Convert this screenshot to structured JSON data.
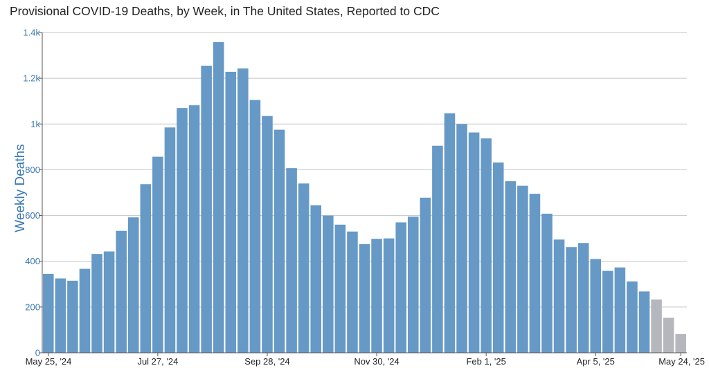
{
  "chart_data": {
    "type": "bar",
    "title": "Provisional COVID-19 Deaths, by Week, in The United States, Reported to CDC",
    "xlabel": "",
    "ylabel": "Weekly Deaths",
    "ylim": [
      0,
      1400
    ],
    "yticks": [
      {
        "value": 0,
        "label": "0"
      },
      {
        "value": 200,
        "label": "200"
      },
      {
        "value": 400,
        "label": "400"
      },
      {
        "value": 600,
        "label": "600"
      },
      {
        "value": 800,
        "label": "800"
      },
      {
        "value": 1000,
        "label": "1k"
      },
      {
        "value": 1200,
        "label": "1.2k"
      },
      {
        "value": 1400,
        "label": "1.4k"
      }
    ],
    "xticks": [
      {
        "index": 0,
        "label": "May 25, '24"
      },
      {
        "index": 9,
        "label": "Jul 27, '24"
      },
      {
        "index": 18,
        "label": "Sep 28, '24"
      },
      {
        "index": 27,
        "label": "Nov 30, '24"
      },
      {
        "index": 36,
        "label": "Feb 1, '25"
      },
      {
        "index": 45,
        "label": "Apr 5, '25"
      },
      {
        "index": 52,
        "label": "May 24, '25"
      }
    ],
    "grid": true,
    "colors": {
      "reported": "#6699c6",
      "incomplete": "#b5b7bd",
      "axis_text": "#3b78b4",
      "grid": "#c4c4c4"
    },
    "categories": [
      "May 25, '24",
      "Jun 1, '24",
      "Jun 8, '24",
      "Jun 15, '24",
      "Jun 22, '24",
      "Jun 29, '24",
      "Jul 6, '24",
      "Jul 13, '24",
      "Jul 20, '24",
      "Jul 27, '24",
      "Aug 3, '24",
      "Aug 10, '24",
      "Aug 17, '24",
      "Aug 24, '24",
      "Aug 31, '24",
      "Sep 7, '24",
      "Sep 14, '24",
      "Sep 21, '24",
      "Sep 28, '24",
      "Oct 5, '24",
      "Oct 12, '24",
      "Oct 19, '24",
      "Oct 26, '24",
      "Nov 2, '24",
      "Nov 9, '24",
      "Nov 16, '24",
      "Nov 23, '24",
      "Nov 30, '24",
      "Dec 7, '24",
      "Dec 14, '24",
      "Dec 21, '24",
      "Dec 28, '24",
      "Jan 4, '25",
      "Jan 11, '25",
      "Jan 18, '25",
      "Jan 25, '25",
      "Feb 1, '25",
      "Feb 8, '25",
      "Feb 15, '25",
      "Feb 22, '25",
      "Mar 1, '25",
      "Mar 8, '25",
      "Mar 15, '25",
      "Mar 22, '25",
      "Mar 29, '25",
      "Apr 5, '25",
      "Apr 12, '25",
      "Apr 19, '25",
      "Apr 26, '25",
      "May 3, '25",
      "May 10, '25",
      "May 17, '25",
      "May 24, '25"
    ],
    "values": [
      345,
      325,
      315,
      367,
      432,
      443,
      533,
      592,
      737,
      857,
      985,
      1070,
      1082,
      1255,
      1358,
      1228,
      1243,
      1105,
      1035,
      975,
      807,
      740,
      645,
      600,
      560,
      530,
      475,
      498,
      500,
      570,
      595,
      678,
      905,
      1047,
      1000,
      963,
      937,
      832,
      750,
      730,
      695,
      608,
      495,
      462,
      480,
      410,
      358,
      373,
      312,
      268,
      233,
      153,
      82
    ],
    "incomplete_from_index": 50
  }
}
